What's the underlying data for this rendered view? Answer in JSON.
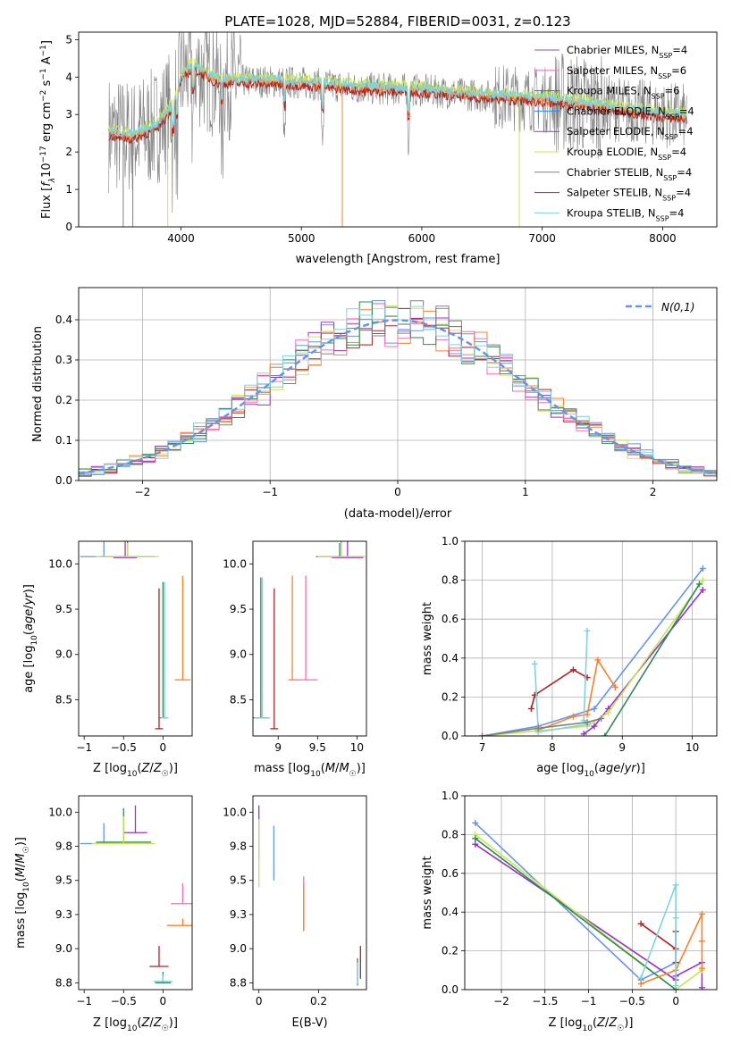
{
  "title": "PLATE=1028, MJD=52884, FIBERID=0031, z=0.123",
  "palette": {
    "Chabrier MILES": "#6a5acd",
    "Salpeter MILES": "#ff69b4",
    "Kroupa MILES": "#2e8b57",
    "Chabrier ELODIE": "#1e90ff",
    "Salpeter ELODIE": "#9932cc",
    "Kroupa ELODIE": "#c8e650",
    "Chabrier STELIB": "#808080",
    "Salpeter STELIB": "#b22222",
    "Kroupa STELIB": "#7fd3dc",
    "data": "#808080",
    "cornflower": "#6495ed",
    "orange": "#ff7f27"
  },
  "chart_data": [
    {
      "id": "spectrum",
      "type": "line",
      "xlabel": "wavelength [Angstrom, rest frame]",
      "ylabel": "Flux [f_λ10^-17 erg cm^-2 s^-1 A^-1]",
      "xlim": [
        3150,
        8450
      ],
      "ylim": [
        0,
        5.2
      ],
      "xticks": [
        4000,
        5000,
        6000,
        7000,
        8000
      ],
      "yticks": [
        0,
        1,
        2,
        3,
        4,
        5
      ],
      "grid": false,
      "legend_position": "right",
      "legend": [
        {
          "label": "Chabrier MILES, N_SSP=4",
          "color": "#6a5acd"
        },
        {
          "label": "Salpeter MILES, N_SSP=6",
          "color": "#ff69b4"
        },
        {
          "label": "Kroupa MILES, N_SSP=6",
          "color": "#2e8b57"
        },
        {
          "label": "Chabrier ELODIE, N_SSP=4",
          "color": "#1e90ff"
        },
        {
          "label": "Salpeter ELODIE, N_SSP=4",
          "color": "#9932cc"
        },
        {
          "label": "Kroupa ELODIE, N_SSP=4",
          "color": "#c8e650"
        },
        {
          "label": "Chabrier STELIB, N_SSP=4",
          "color": "#808080"
        },
        {
          "label": "Salpeter STELIB, N_SSP=4",
          "color": "#b22222"
        },
        {
          "label": "Kroupa STELIB, N_SSP=4",
          "color": "#7fd3dc"
        }
      ],
      "continuum": {
        "wavelength": [
          3400,
          3600,
          3800,
          3950,
          4000,
          4100,
          4300,
          4500,
          5000,
          5500,
          6000,
          6500,
          7000,
          7500,
          8000,
          8200
        ],
        "flux": [
          2.5,
          2.4,
          2.7,
          3.3,
          4.0,
          4.3,
          3.9,
          3.9,
          3.85,
          3.7,
          3.65,
          3.5,
          3.4,
          3.2,
          3.0,
          2.95
        ]
      }
    },
    {
      "id": "residuals",
      "type": "line",
      "xlabel": "(data-model)/error",
      "ylabel": "Normed distribution",
      "xlim": [
        -2.5,
        2.5
      ],
      "ylim": [
        0,
        0.48
      ],
      "xticks": [
        -2,
        -1,
        0,
        1,
        2
      ],
      "yticks": [
        0.0,
        0.1,
        0.2,
        0.3,
        0.4
      ],
      "grid": true,
      "legend_position": "top-right",
      "legend_label": "N(0,1)",
      "gaussian_color": "#6495ed"
    },
    {
      "id": "age-vs-Z",
      "type": "scatter",
      "xlabel": "Z [log10(Z/Z☉)]",
      "ylabel": "age [log10(age/yr)]",
      "xlim": [
        -1.07,
        0.37
      ],
      "ylim": [
        8.1,
        10.25
      ],
      "xticks": [
        -1.0,
        -0.5,
        0.0
      ],
      "yticks": [
        8.5,
        9.0,
        9.5,
        10.0
      ],
      "grid": false,
      "points": [
        {
          "x": -0.75,
          "y": 10.08,
          "xerr": 0.3,
          "yerr": 0.5,
          "color": "#6495ed"
        },
        {
          "x": -0.48,
          "y": 10.07,
          "xerr": 0.15,
          "yerr": 0.2,
          "color": "#9932cc"
        },
        {
          "x": -0.45,
          "y": 10.08,
          "xerr": 0.35,
          "yerr": 0.2,
          "color": "#2e8b57"
        },
        {
          "x": -0.45,
          "y": 10.08,
          "xerr": 0.4,
          "yerr": 0.15,
          "color": "#c8e650"
        },
        {
          "x": -0.05,
          "y": 8.18,
          "xerr": 0.05,
          "yerr": 1.55,
          "color": "#b22222"
        },
        {
          "x": 0.25,
          "y": 8.72,
          "xerr": 0.1,
          "yerr": 1.15,
          "color": "#ff7f27"
        },
        {
          "x": 0.0,
          "y": 8.3,
          "xerr": 0.05,
          "yerr": 1.5,
          "color": "#2e8b57"
        },
        {
          "x": 0.02,
          "y": 8.3,
          "xerr": 0.05,
          "yerr": 1.5,
          "color": "#7fd3dc"
        }
      ]
    },
    {
      "id": "age-vs-mass",
      "type": "scatter",
      "xlabel": "mass [log10(M/M☉)]",
      "ylabel": "",
      "xlim": [
        8.68,
        10.12
      ],
      "ylim": [
        8.1,
        10.25
      ],
      "xticks": [
        9.0,
        9.5,
        10.0
      ],
      "yticks": [
        8.5,
        9.0,
        9.5,
        10.0
      ],
      "grid": false,
      "points": [
        {
          "x": 9.8,
          "y": 10.08,
          "xerr": 0.3,
          "yerr": 0.5,
          "color": "#6495ed"
        },
        {
          "x": 9.88,
          "y": 10.07,
          "xerr": 0.2,
          "yerr": 0.2,
          "color": "#9932cc"
        },
        {
          "x": 9.78,
          "y": 10.08,
          "xerr": 0.3,
          "yerr": 0.15,
          "color": "#2e8b57"
        },
        {
          "x": 9.8,
          "y": 10.08,
          "xerr": 0.3,
          "yerr": 0.15,
          "color": "#c8e650"
        },
        {
          "x": 8.95,
          "y": 8.18,
          "xerr": 0.05,
          "yerr": 1.55,
          "color": "#b22222"
        },
        {
          "x": 9.18,
          "y": 8.72,
          "xerr": 0.05,
          "yerr": 1.15,
          "color": "#ff7f27"
        },
        {
          "x": 9.35,
          "y": 8.72,
          "xerr": 0.15,
          "yerr": 1.15,
          "color": "#ff69b4"
        },
        {
          "x": 8.78,
          "y": 8.3,
          "xerr": 0.1,
          "yerr": 1.55,
          "color": "#2e8b57"
        },
        {
          "x": 8.8,
          "y": 8.3,
          "xerr": 0.1,
          "yerr": 1.55,
          "color": "#7fd3dc"
        }
      ]
    },
    {
      "id": "weight-vs-age",
      "type": "line",
      "xlabel": "age [log10(age/yr)]",
      "ylabel": "mass weight",
      "xlim": [
        6.75,
        10.35
      ],
      "ylim": [
        0.0,
        1.0
      ],
      "xticks": [
        7,
        8,
        9,
        10
      ],
      "yticks": [
        0.0,
        0.2,
        0.4,
        0.6,
        0.8,
        1.0
      ],
      "grid": true,
      "series": [
        {
          "color": "#6495ed",
          "x": [
            7.0,
            7.8,
            8.6,
            10.15
          ],
          "y": [
            0.0,
            0.05,
            0.14,
            0.86
          ]
        },
        {
          "color": "#9932cc",
          "x": [
            8.45,
            8.6,
            8.8,
            10.15
          ],
          "y": [
            0.01,
            0.05,
            0.14,
            0.75
          ]
        },
        {
          "color": "#ff7f27",
          "x": [
            7.8,
            8.3,
            8.5,
            8.65,
            8.9
          ],
          "y": [
            0.03,
            0.1,
            0.11,
            0.39,
            0.25
          ]
        },
        {
          "color": "#c8e650",
          "x": [
            7.0,
            8.5,
            8.8,
            10.15
          ],
          "y": [
            0.0,
            0.05,
            0.12,
            0.8
          ]
        },
        {
          "color": "#2e8b57",
          "x": [
            8.75,
            10.1
          ],
          "y": [
            0.0,
            0.78
          ]
        },
        {
          "color": "#b22222",
          "x": [
            7.7,
            7.75,
            8.3,
            8.5
          ],
          "y": [
            0.14,
            0.21,
            0.34,
            0.3
          ]
        },
        {
          "color": "#7fd3dc",
          "x": [
            7.75,
            7.8,
            8.5,
            8.45,
            8.5
          ],
          "y": [
            0.37,
            0.02,
            0.06,
            0.08,
            0.54
          ]
        },
        {
          "color": "#808080",
          "x": [
            7.0,
            7.8,
            8.5,
            8.7
          ],
          "y": [
            0.0,
            0.04,
            0.07,
            0.09
          ]
        }
      ]
    },
    {
      "id": "mass-vs-Z",
      "type": "scatter",
      "xlabel": "Z [log10(Z/Z☉)]",
      "ylabel": "mass [log10(M/M☉)]",
      "xlim": [
        -1.07,
        0.37
      ],
      "ylim": [
        8.7,
        10.12
      ],
      "xticks": [
        -1.0,
        -0.5,
        0.0
      ],
      "yticks": [
        8.75,
        9.0,
        9.25,
        9.5,
        9.75,
        10.0
      ],
      "grid": false,
      "points": [
        {
          "x": -0.75,
          "y": 9.77,
          "xerr": 0.3,
          "yerr": 0.15,
          "color": "#6495ed"
        },
        {
          "x": -0.35,
          "y": 9.85,
          "xerr": 0.15,
          "yerr": 0.2,
          "color": "#9932cc"
        },
        {
          "x": -0.5,
          "y": 9.78,
          "xerr": 0.35,
          "yerr": 0.25,
          "color": "#2e8b57"
        },
        {
          "x": -0.5,
          "y": 9.77,
          "xerr": 0.4,
          "yerr": 0.2,
          "color": "#c8e650"
        },
        {
          "x": 0.25,
          "y": 9.33,
          "xerr": 0.15,
          "yerr": 0.15,
          "color": "#ff69b4"
        },
        {
          "x": 0.25,
          "y": 9.17,
          "xerr": 0.2,
          "yerr": 0.05,
          "color": "#ff7f27"
        },
        {
          "x": -0.05,
          "y": 8.87,
          "xerr": 0.12,
          "yerr": 0.15,
          "color": "#b22222"
        },
        {
          "x": 0.0,
          "y": 8.75,
          "xerr": 0.1,
          "yerr": 0.08,
          "color": "#2e8b57"
        },
        {
          "x": 0.0,
          "y": 8.76,
          "xerr": 0.12,
          "yerr": 0.05,
          "color": "#7fd3dc"
        }
      ]
    },
    {
      "id": "mass-vs-ebv",
      "type": "scatter",
      "xlabel": "E(B-V)",
      "ylabel": "",
      "xlim": [
        -0.02,
        0.36
      ],
      "ylim": [
        8.7,
        10.12
      ],
      "xticks": [
        0.0,
        0.2
      ],
      "yticks": [
        8.75,
        9.0,
        9.25,
        9.5,
        9.75,
        10.0
      ],
      "grid": false,
      "points": [
        {
          "x": 0.0,
          "y": 9.85,
          "yerr": 0.2,
          "color": "#9932cc"
        },
        {
          "x": 0.0,
          "y": 9.7,
          "yerr": 0.25,
          "color": "#c8e650"
        },
        {
          "x": 0.05,
          "y": 9.7,
          "yerr": 0.2,
          "color": "#6495ed"
        },
        {
          "x": 0.15,
          "y": 9.33,
          "yerr": 0.2,
          "color": "#ff69b4"
        },
        {
          "x": 0.15,
          "y": 9.3,
          "yerr": 0.17,
          "color": "#ff7f27"
        },
        {
          "x": 0.34,
          "y": 8.9,
          "yerr": 0.12,
          "color": "#b22222"
        },
        {
          "x": 0.33,
          "y": 8.83,
          "yerr": 0.1,
          "color": "#2e8b57"
        },
        {
          "x": 0.33,
          "y": 8.82,
          "yerr": 0.08,
          "color": "#7fd3dc"
        }
      ]
    },
    {
      "id": "weight-vs-Z",
      "type": "line",
      "xlabel": "Z [log10(Z/Z☉)]",
      "ylabel": "mass weight",
      "xlim": [
        -2.42,
        0.47
      ],
      "ylim": [
        0.0,
        1.0
      ],
      "xticks": [
        -2.0,
        -1.5,
        -1.0,
        -0.5,
        0.0
      ],
      "yticks": [
        0.0,
        0.2,
        0.4,
        0.6,
        0.8,
        1.0
      ],
      "grid": true,
      "series": [
        {
          "color": "#6495ed",
          "x": [
            -2.3,
            -0.4,
            0.0
          ],
          "y": [
            0.86,
            0.05,
            0.14
          ]
        },
        {
          "color": "#9932cc",
          "x": [
            -2.3,
            0.0,
            0.0,
            0.3,
            0.3
          ],
          "y": [
            0.75,
            0.05,
            0.07,
            0.14,
            0.01
          ]
        },
        {
          "color": "#c8e650",
          "x": [
            -2.3,
            0.0,
            0.3
          ],
          "y": [
            0.8,
            0.0,
            0.1
          ]
        },
        {
          "color": "#2e8b57",
          "x": [
            -2.3,
            0.0
          ],
          "y": [
            0.78,
            0.0
          ]
        },
        {
          "color": "#ff7f27",
          "x": [
            -0.4,
            0.0,
            0.3,
            0.3,
            0.3
          ],
          "y": [
            0.03,
            0.1,
            0.39,
            0.25,
            0.11
          ]
        },
        {
          "color": "#b22222",
          "x": [
            -0.4,
            0.0,
            0.0,
            0.0
          ],
          "y": [
            0.34,
            0.21,
            0.3,
            0.14
          ]
        },
        {
          "color": "#7fd3dc",
          "x": [
            -0.4,
            0.0,
            0.0,
            0.0
          ],
          "y": [
            0.06,
            0.54,
            0.37,
            0.02
          ]
        }
      ]
    }
  ]
}
